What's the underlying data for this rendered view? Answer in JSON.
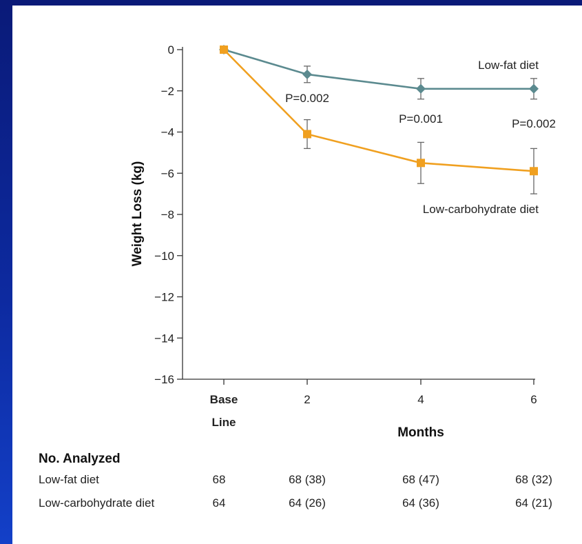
{
  "chart_data": {
    "type": "line",
    "title": "",
    "xlabel": "Months",
    "ylabel": "Weight Loss (kg)",
    "categories": [
      "Base Line",
      "2",
      "4",
      "6"
    ],
    "x": [
      0,
      2,
      4,
      6
    ],
    "ylim": [
      -16,
      0
    ],
    "yticks": [
      0,
      -2,
      -4,
      -6,
      -8,
      -10,
      -12,
      -14,
      -16
    ],
    "ytick_labels": [
      "0",
      "−2",
      "−4",
      "−6",
      "−8",
      "−10",
      "−12",
      "−14",
      "−16"
    ],
    "xtick_labels": [
      "Base Line",
      "2",
      "4",
      "6"
    ],
    "grid": false,
    "series": [
      {
        "name": "Low-fat diet",
        "color": "#5b8a8f",
        "marker": "diamond",
        "values": [
          0,
          -1.2,
          -1.9,
          -1.9
        ],
        "err_low": [
          0,
          0.4,
          0.5,
          0.5
        ],
        "err_high": [
          0,
          0.4,
          0.5,
          0.5
        ]
      },
      {
        "name": "Low-carbohydrate diet",
        "color": "#f0a020",
        "marker": "square",
        "values": [
          0,
          -4.1,
          -5.5,
          -5.9
        ],
        "err_low": [
          0,
          0.7,
          1.0,
          1.1
        ],
        "err_high": [
          0,
          0.7,
          1.0,
          1.1
        ]
      }
    ],
    "annotations": [
      {
        "text": "P=0.002",
        "x": 2
      },
      {
        "text": "P=0.001",
        "x": 4
      },
      {
        "text": "P=0.002",
        "x": 6
      }
    ],
    "table": {
      "heading": "No. Analyzed",
      "rows": [
        {
          "label": "Low-fat diet",
          "cells": [
            "68",
            "68 (38)",
            "68 (47)",
            "68 (32)"
          ]
        },
        {
          "label": "Low-carbohydrate diet",
          "cells": [
            "64",
            "64 (26)",
            "64 (36)",
            "64 (21)"
          ]
        }
      ]
    }
  }
}
